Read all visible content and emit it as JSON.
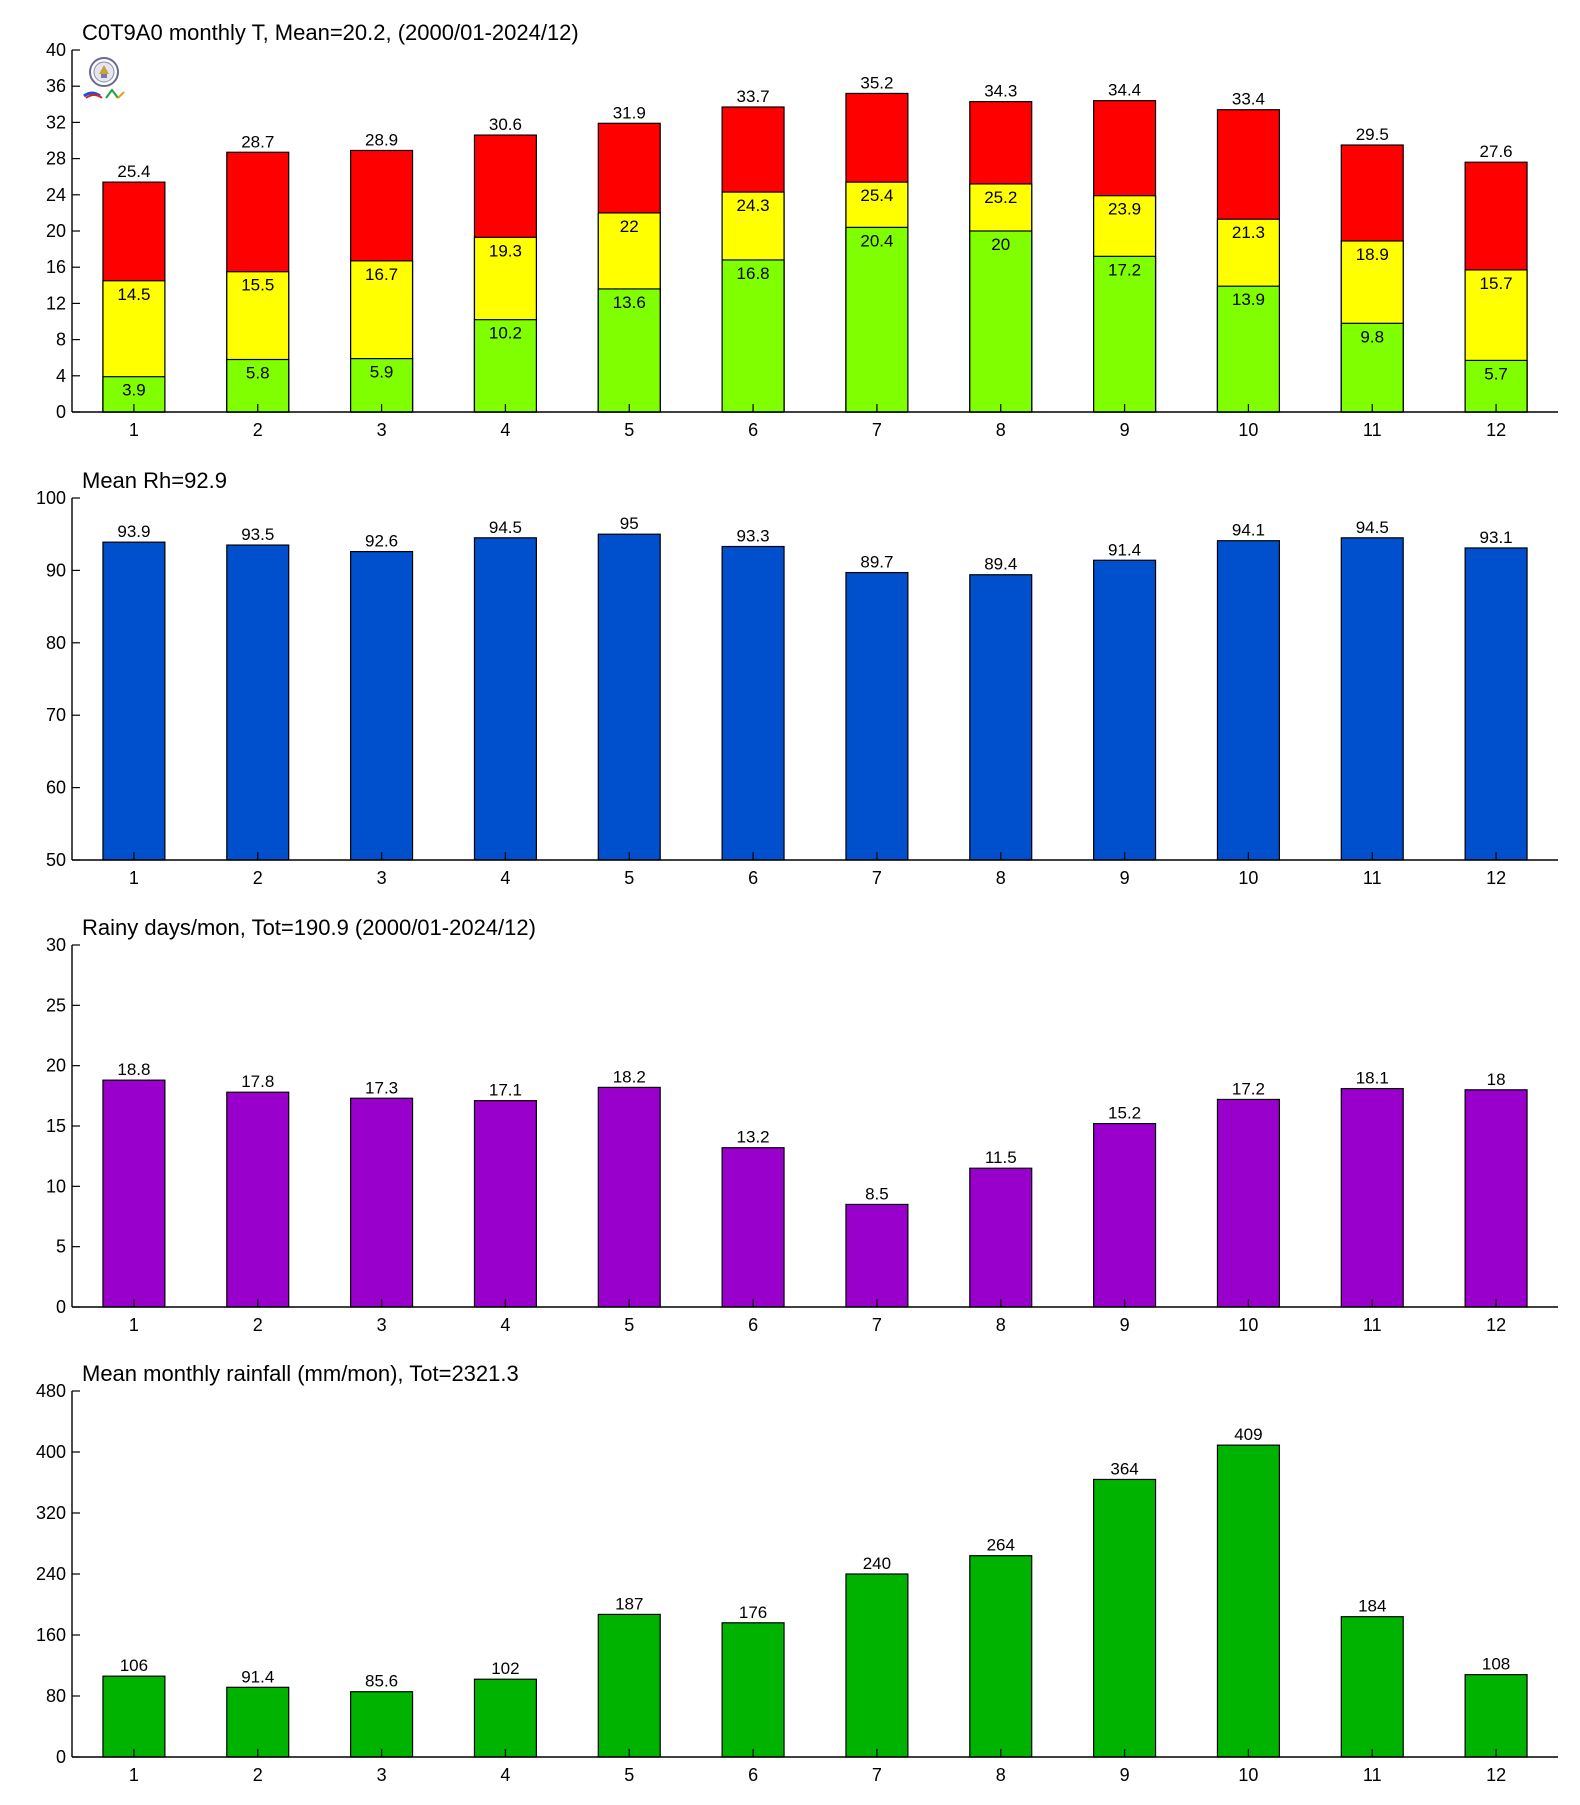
{
  "colors": {
    "temp_min": "#80ff00",
    "temp_mean": "#ffff00",
    "temp_max": "#ff0000",
    "humidity": "#004fcc",
    "rainy_days": "#9900cc",
    "rainfall": "#00b300",
    "axis": "#000000"
  },
  "icons": {
    "logo": "station-logo-icon"
  },
  "chart_data": [
    {
      "id": "temperature",
      "type": "bar",
      "stacked_layers": true,
      "title": "C0T9A0 monthly T, Mean=20.2, (2000/01-2024/12)",
      "xlabel": "",
      "ylabel": "",
      "categories": [
        "1",
        "2",
        "3",
        "4",
        "5",
        "6",
        "7",
        "8",
        "9",
        "10",
        "11",
        "12"
      ],
      "ylim": [
        0,
        40
      ],
      "yticks": [
        0,
        4,
        8,
        12,
        16,
        20,
        24,
        28,
        32,
        36,
        40
      ],
      "series": [
        {
          "values": [
            25.4,
            28.7,
            28.9,
            30.6,
            31.9,
            33.7,
            35.2,
            34.3,
            34.4,
            33.4,
            29.5,
            27.6
          ],
          "color": "#ff0000",
          "label_position": "above"
        },
        {
          "values": [
            14.5,
            15.5,
            16.7,
            19.3,
            22,
            24.3,
            25.4,
            25.2,
            23.9,
            21.3,
            18.9,
            15.7
          ],
          "color": "#ffff00",
          "label_position": "inside-top"
        },
        {
          "values": [
            3.9,
            5.8,
            5.9,
            10.2,
            13.6,
            16.8,
            20.4,
            20,
            17.2,
            13.9,
            9.8,
            5.7
          ],
          "color": "#80ff00",
          "label_position": "inside-top"
        }
      ],
      "grid": false,
      "legend": "none"
    },
    {
      "id": "humidity",
      "type": "bar",
      "title": "Mean Rh=92.9",
      "xlabel": "",
      "ylabel": "",
      "categories": [
        "1",
        "2",
        "3",
        "4",
        "5",
        "6",
        "7",
        "8",
        "9",
        "10",
        "11",
        "12"
      ],
      "ylim": [
        50,
        100
      ],
      "yticks": [
        50,
        60,
        70,
        80,
        90,
        100
      ],
      "series": [
        {
          "values": [
            93.9,
            93.5,
            92.6,
            94.5,
            95,
            93.3,
            89.7,
            89.4,
            91.4,
            94.1,
            94.5,
            93.1
          ],
          "color": "#004fcc",
          "label_position": "above"
        }
      ],
      "grid": false,
      "legend": "none"
    },
    {
      "id": "rainy-days",
      "type": "bar",
      "title": "Rainy days/mon, Tot=190.9 (2000/01-2024/12)",
      "xlabel": "",
      "ylabel": "",
      "categories": [
        "1",
        "2",
        "3",
        "4",
        "5",
        "6",
        "7",
        "8",
        "9",
        "10",
        "11",
        "12"
      ],
      "ylim": [
        0,
        30
      ],
      "yticks": [
        0,
        5,
        10,
        15,
        20,
        25,
        30
      ],
      "series": [
        {
          "values": [
            18.8,
            17.8,
            17.3,
            17.1,
            18.2,
            13.2,
            8.5,
            11.5,
            15.2,
            17.2,
            18.1,
            18
          ],
          "color": "#9900cc",
          "label_position": "above"
        }
      ],
      "grid": false,
      "legend": "none"
    },
    {
      "id": "rainfall",
      "type": "bar",
      "title": "Mean monthly rainfall (mm/mon), Tot=2321.3",
      "xlabel": "",
      "ylabel": "",
      "categories": [
        "1",
        "2",
        "3",
        "4",
        "5",
        "6",
        "7",
        "8",
        "9",
        "10",
        "11",
        "12"
      ],
      "ylim": [
        0,
        480
      ],
      "yticks": [
        0,
        80,
        160,
        240,
        320,
        400,
        480
      ],
      "series": [
        {
          "values": [
            106,
            91.4,
            85.6,
            102,
            187,
            176,
            240,
            264,
            364,
            409,
            184,
            108
          ],
          "color": "#00b300",
          "label_position": "above"
        }
      ],
      "grid": false,
      "legend": "none"
    }
  ]
}
